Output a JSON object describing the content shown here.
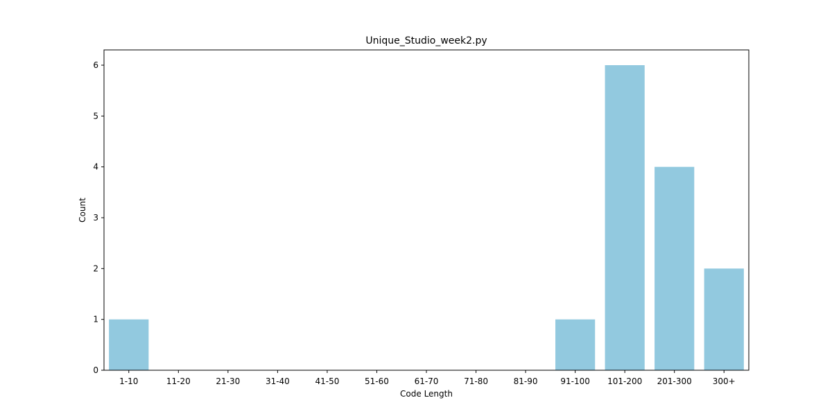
{
  "chart_data": {
    "type": "bar",
    "title": "Unique_Studio_week2.py",
    "xlabel": "Code Length",
    "ylabel": "Count",
    "categories": [
      "1-10",
      "11-20",
      "21-30",
      "31-40",
      "41-50",
      "51-60",
      "61-70",
      "71-80",
      "81-90",
      "91-100",
      "101-200",
      "201-300",
      "300+"
    ],
    "values": [
      1,
      0,
      0,
      0,
      0,
      0,
      0,
      0,
      0,
      1,
      6,
      4,
      2
    ],
    "ylim": [
      0,
      6.3
    ],
    "yticks": [
      0,
      1,
      2,
      3,
      4,
      5,
      6
    ],
    "grid": false,
    "legend": "none",
    "bar_color": "#92c9df"
  }
}
